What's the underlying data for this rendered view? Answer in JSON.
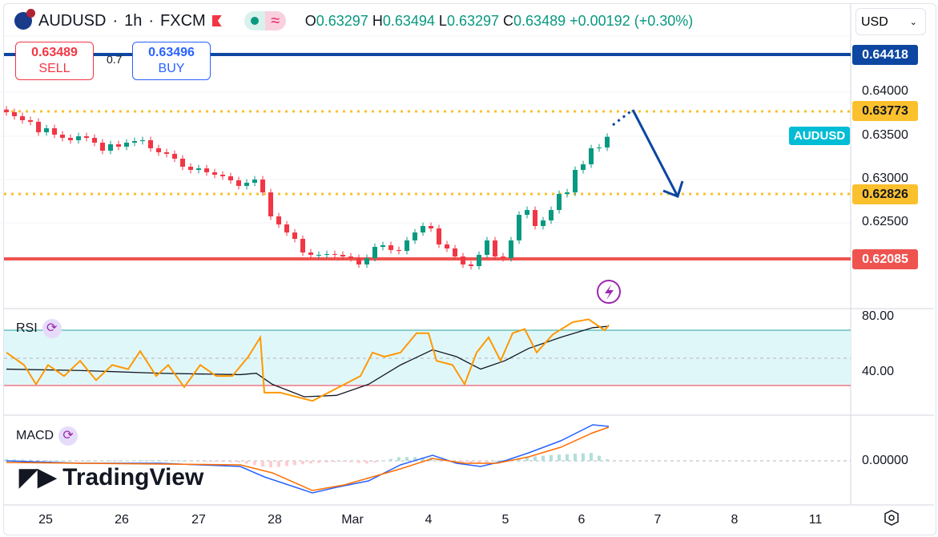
{
  "header": {
    "symbol": "AUDUSD",
    "interval": "1h",
    "exchange": "FXCM",
    "open_label": "O",
    "open": "0.63297",
    "high_label": "H",
    "high": "0.63494",
    "low_label": "L",
    "low": "0.63297",
    "close_label": "C",
    "close": "0.63489",
    "change": "+0.00192 (+0.30%)"
  },
  "trade": {
    "sell_price": "0.63489",
    "sell_label": "SELL",
    "spread": "0.7",
    "buy_price": "0.63496",
    "buy_label": "BUY"
  },
  "currency": "USD",
  "price_axis": {
    "ticks": [
      "0.64000",
      "0.63500",
      "0.63000",
      "0.62500"
    ],
    "tags": {
      "blue": "0.64418",
      "yellow1": "0.63773",
      "yellow2": "0.62826",
      "red": "0.62085"
    },
    "symbol_tag": "AUDUSD"
  },
  "rsi": {
    "label": "RSI",
    "ticks": [
      "80.00",
      "40.00"
    ],
    "upper": 70,
    "lower": 30,
    "values": [
      [
        0,
        54
      ],
      [
        2.2,
        45
      ],
      [
        3.7,
        31
      ],
      [
        5.2,
        45
      ],
      [
        7.2,
        37
      ],
      [
        9.2,
        48
      ],
      [
        11.2,
        34
      ],
      [
        13.2,
        45
      ],
      [
        15.2,
        42
      ],
      [
        16.7,
        55
      ],
      [
        18.7,
        37
      ],
      [
        20.2,
        45
      ],
      [
        22.2,
        29
      ],
      [
        24.2,
        45
      ],
      [
        26.2,
        37
      ],
      [
        28.2,
        37
      ],
      [
        30.2,
        51
      ],
      [
        31.7,
        65
      ],
      [
        32.2,
        25
      ],
      [
        34.2,
        25
      ],
      [
        36.2,
        22
      ],
      [
        38.2,
        19
      ],
      [
        40.2,
        25
      ],
      [
        42.2,
        31
      ],
      [
        44.2,
        37
      ],
      [
        45.7,
        54
      ],
      [
        47.2,
        51
      ],
      [
        49.2,
        54
      ],
      [
        51.2,
        68
      ],
      [
        52.7,
        68
      ],
      [
        53.7,
        48
      ],
      [
        55.7,
        45
      ],
      [
        57.2,
        31
      ],
      [
        58.7,
        54
      ],
      [
        60.2,
        65
      ],
      [
        61.7,
        48
      ],
      [
        63.2,
        68
      ],
      [
        64.7,
        71
      ],
      [
        66.2,
        54
      ],
      [
        68.2,
        67
      ],
      [
        70.7,
        76
      ],
      [
        72.7,
        78
      ],
      [
        74.7,
        70
      ],
      [
        75.2,
        74
      ]
    ],
    "ma": [
      [
        0,
        42
      ],
      [
        9.2,
        41
      ],
      [
        19.2,
        39
      ],
      [
        29.2,
        38
      ],
      [
        31.2,
        39
      ],
      [
        33.2,
        31
      ],
      [
        37.2,
        22
      ],
      [
        41.2,
        23
      ],
      [
        45.2,
        31
      ],
      [
        49.2,
        45
      ],
      [
        53.2,
        56
      ],
      [
        56.2,
        51
      ],
      [
        59.2,
        42
      ],
      [
        62.2,
        48
      ],
      [
        65.2,
        57
      ],
      [
        69.2,
        65
      ],
      [
        73.2,
        72
      ],
      [
        75.2,
        73
      ]
    ]
  },
  "macd": {
    "label": "MACD",
    "zero_label": "0.00000",
    "macd": [
      [
        0,
        0
      ],
      [
        9.2,
        -0.0003
      ],
      [
        19.2,
        -0.0003
      ],
      [
        29.2,
        -0.0007
      ],
      [
        32.2,
        -0.002
      ],
      [
        35.2,
        -0.003
      ],
      [
        38.2,
        -0.004
      ],
      [
        41.2,
        -0.0033
      ],
      [
        45.2,
        -0.0025
      ],
      [
        49.2,
        -0.0005
      ],
      [
        53.2,
        0.0007
      ],
      [
        56.2,
        -0.0003
      ],
      [
        59.2,
        -0.0007
      ],
      [
        62.2,
        0
      ],
      [
        65.2,
        0.001
      ],
      [
        69.2,
        0.0025
      ],
      [
        73.2,
        0.0045
      ],
      [
        75.2,
        0.0043
      ]
    ],
    "signal": [
      [
        0,
        -0.0002
      ],
      [
        29.2,
        -0.0005
      ],
      [
        33.2,
        -0.0015
      ],
      [
        38.2,
        -0.0037
      ],
      [
        42.2,
        -0.003
      ],
      [
        49.2,
        -0.001
      ],
      [
        53.2,
        0.0003
      ],
      [
        57.2,
        -0.0003
      ],
      [
        61.2,
        -0.0003
      ],
      [
        65.2,
        0.0005
      ],
      [
        69.2,
        0.0017
      ],
      [
        73.2,
        0.0035
      ],
      [
        75.2,
        0.0042
      ]
    ]
  },
  "time_axis": [
    "25",
    "26",
    "27",
    "28",
    "Mar",
    "4",
    "5",
    "6",
    "7",
    "8",
    "11"
  ],
  "logo": "TradingView",
  "colors": {
    "up": "#089981",
    "down": "#f23645",
    "blue": "#0d47a1",
    "yellow": "#fbc02d",
    "red": "#ef5350",
    "rsi": "#ff9800",
    "macd": "#2962ff",
    "signal": "#ff6d00"
  },
  "chart_data": {
    "type": "candlestick",
    "title": "AUDUSD 1h FXCM",
    "ylim": [
      0.6195,
      0.6455
    ],
    "closes": [
      0.63771,
      0.63725,
      0.63679,
      0.63661,
      0.63541,
      0.63587,
      0.63514,
      0.63477,
      0.6345,
      0.63495,
      0.63477,
      0.63422,
      0.6333,
      0.63404,
      0.63376,
      0.63422,
      0.6344,
      0.6345,
      0.63358,
      0.63312,
      0.63294,
      0.63239,
      0.63147,
      0.6311,
      0.63128,
      0.63083,
      0.63055,
      0.63037,
      0.62991,
      0.62927,
      0.62963,
      0.63,
      0.62853,
      0.62578,
      0.62486,
      0.62394,
      0.62321,
      0.62165,
      0.62138,
      0.62138,
      0.62147,
      0.62138,
      0.62119,
      0.62101,
      0.62028,
      0.62101,
      0.62229,
      0.62248,
      0.62193,
      0.62183,
      0.62303,
      0.62394,
      0.62468,
      0.6244,
      0.62257,
      0.62211,
      0.62119,
      0.62028,
      0.62009,
      0.62138,
      0.62303,
      0.62119,
      0.62101,
      0.62303,
      0.62596,
      0.62651,
      0.62468,
      0.62532,
      0.62651,
      0.62835,
      0.62853,
      0.6311,
      0.63174,
      0.63358,
      0.63367,
      0.63489
    ],
    "levels": [
      0.64418,
      0.63773,
      0.62826,
      0.62085
    ]
  }
}
